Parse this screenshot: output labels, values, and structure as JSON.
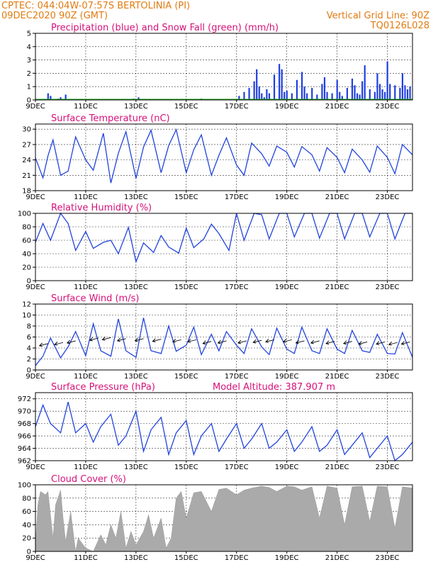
{
  "header": {
    "line1_left": "CPTEC:   044:04W-07:57S  BERTOLINIA (PI)",
    "line2_left": "09DEC2020 90Z (GMT)",
    "line1_right": "Vertical Grid Line: 90Z",
    "line2_right": "TQ0126L028"
  },
  "colors": {
    "header": "#e07b12",
    "title": "#d6117a",
    "line": "#2244dd",
    "precip": "#1f3fe0",
    "snow": "#22aa22",
    "cloud": "#aaaaaa"
  },
  "x_axis": {
    "start_day": 9,
    "end_day": 24,
    "labels": [
      "9DEC",
      "11DEC",
      "13DEC",
      "15DEC",
      "17DEC",
      "19DEC",
      "21DEC",
      "23DEC"
    ],
    "label_days": [
      9,
      11,
      13,
      15,
      17,
      19,
      21,
      23
    ]
  },
  "chart_data": [
    {
      "id": "precipitation",
      "type": "bar",
      "title": "Precipitation (blue) and Snow Fall (green) (mm/h)",
      "ylim": [
        0,
        5
      ],
      "yticks": [
        0,
        1,
        2,
        3,
        4,
        5
      ],
      "series": [
        {
          "name": "Precipitation",
          "x": [
            9.5,
            9.6,
            9.9,
            10.0,
            10.2,
            12.9,
            13.1,
            15.6,
            17.1,
            17.3,
            17.5,
            17.7,
            17.8,
            17.9,
            18.0,
            18.1,
            18.2,
            18.3,
            18.5,
            18.7,
            18.8,
            18.9,
            19.0,
            19.2,
            19.4,
            19.6,
            19.7,
            19.8,
            20.0,
            20.2,
            20.4,
            20.5,
            20.6,
            20.8,
            21.0,
            21.1,
            21.2,
            21.4,
            21.6,
            21.7,
            21.8,
            21.9,
            22.0,
            22.1,
            22.3,
            22.5,
            22.6,
            22.7,
            22.8,
            22.9,
            23.0,
            23.1,
            23.3,
            23.5,
            23.6,
            23.7,
            23.8,
            23.9
          ],
          "values": [
            0.5,
            0.3,
            0.1,
            0.2,
            0.4,
            0.1,
            0.2,
            0.1,
            0.3,
            0.6,
            0.9,
            1.4,
            2.3,
            1.0,
            0.5,
            0.2,
            0.8,
            0.5,
            1.9,
            2.7,
            2.3,
            0.6,
            0.7,
            0.5,
            1.5,
            2.1,
            1.0,
            0.5,
            0.9,
            0.4,
            1.2,
            1.7,
            0.6,
            0.5,
            1.5,
            0.6,
            0.3,
            0.9,
            1.6,
            1.1,
            0.5,
            0.4,
            1.4,
            2.6,
            0.8,
            0.6,
            2.0,
            1.2,
            0.8,
            0.6,
            2.9,
            1.2,
            1.1,
            0.9,
            2.0,
            1.1,
            0.8,
            1.0
          ]
        },
        {
          "name": "Snow Fall",
          "x": [],
          "values": []
        }
      ]
    },
    {
      "id": "temperature",
      "type": "line",
      "title": "Surface Temperature (nC)",
      "ylim": [
        18,
        31
      ],
      "yticks": [
        18,
        21,
        24,
        27,
        30
      ],
      "series": [
        {
          "name": "Temperature",
          "x": [
            9.0,
            9.3,
            9.5,
            9.7,
            10.0,
            10.3,
            10.6,
            11.0,
            11.3,
            11.7,
            12.0,
            12.3,
            12.6,
            13.0,
            13.3,
            13.6,
            14.0,
            14.3,
            14.6,
            15.0,
            15.3,
            15.6,
            16.0,
            16.3,
            16.6,
            17.0,
            17.3,
            17.6,
            18.0,
            18.3,
            18.6,
            19.0,
            19.3,
            19.6,
            20.0,
            20.3,
            20.6,
            21.0,
            21.3,
            21.6,
            22.0,
            22.3,
            22.6,
            23.0,
            23.3,
            23.6,
            24.0
          ],
          "values": [
            24.4,
            20.5,
            24.8,
            27.9,
            21.0,
            21.8,
            28.5,
            24.0,
            22.0,
            29.2,
            19.5,
            25.3,
            29.5,
            20.4,
            26.5,
            29.8,
            21.5,
            26.8,
            29.9,
            21.5,
            26.0,
            28.9,
            21.0,
            24.9,
            28.3,
            23.0,
            21.0,
            27.3,
            25.2,
            22.8,
            26.7,
            25.5,
            22.6,
            26.6,
            25.0,
            21.8,
            26.4,
            24.5,
            21.5,
            26.1,
            24.0,
            21.6,
            26.7,
            24.5,
            21.3,
            27.0,
            25.0
          ]
        }
      ]
    },
    {
      "id": "humidity",
      "type": "line",
      "title": "Relative Humidity (%)",
      "ylim": [
        0,
        100
      ],
      "yticks": [
        0,
        20,
        40,
        60,
        80,
        100
      ],
      "series": [
        {
          "name": "Humidity",
          "x": [
            9.0,
            9.3,
            9.6,
            10.0,
            10.3,
            10.6,
            11.0,
            11.3,
            11.7,
            12.0,
            12.3,
            12.7,
            13.0,
            13.3,
            13.7,
            14.0,
            14.3,
            14.7,
            15.0,
            15.3,
            15.7,
            16.0,
            16.3,
            16.7,
            17.0,
            17.3,
            17.7,
            18.0,
            18.3,
            18.7,
            19.0,
            19.3,
            19.7,
            20.0,
            20.3,
            20.7,
            21.0,
            21.3,
            21.7,
            22.0,
            22.3,
            22.7,
            23.0,
            23.3,
            23.7,
            24.0
          ],
          "values": [
            57,
            85,
            60,
            100,
            85,
            45,
            73,
            48,
            57,
            60,
            40,
            79,
            28,
            56,
            42,
            67,
            50,
            41,
            78,
            49,
            62,
            84,
            70,
            45,
            100,
            60,
            100,
            98,
            62,
            100,
            100,
            65,
            100,
            100,
            63,
            100,
            100,
            62,
            100,
            100,
            65,
            100,
            100,
            62,
            100,
            100
          ]
        }
      ]
    },
    {
      "id": "wind",
      "type": "line",
      "title": "Surface Wind (m/s)",
      "ylim": [
        0,
        12
      ],
      "yticks": [
        0,
        2,
        4,
        6,
        8,
        10,
        12
      ],
      "series": [
        {
          "name": "Wind speed",
          "x": [
            9.0,
            9.3,
            9.6,
            10.0,
            10.3,
            10.6,
            11.0,
            11.3,
            11.6,
            12.0,
            12.3,
            12.6,
            13.0,
            13.3,
            13.6,
            14.0,
            14.3,
            14.6,
            15.0,
            15.3,
            15.6,
            16.0,
            16.3,
            16.6,
            17.0,
            17.3,
            17.6,
            18.0,
            18.3,
            18.6,
            19.0,
            19.3,
            19.6,
            20.0,
            20.3,
            20.6,
            21.0,
            21.3,
            21.6,
            22.0,
            22.3,
            22.6,
            23.0,
            23.3,
            23.6,
            24.0
          ],
          "values": [
            0.8,
            2.5,
            5.8,
            2.2,
            4.2,
            7.0,
            2.6,
            8.4,
            3.5,
            2.5,
            9.3,
            3.5,
            2.3,
            9.5,
            3.5,
            3.0,
            8.0,
            3.4,
            4.5,
            7.8,
            2.8,
            6.5,
            3.5,
            7.0,
            4.5,
            3.0,
            7.5,
            4.2,
            2.8,
            7.6,
            3.8,
            3.0,
            7.8,
            3.5,
            3.0,
            7.5,
            3.8,
            3.0,
            7.2,
            3.5,
            3.2,
            6.5,
            3.0,
            2.9,
            6.8,
            2.3
          ]
        },
        {
          "name": "Wind vectors",
          "x": [
            9.5,
            10.1,
            10.6,
            11.5,
            12.0,
            12.6,
            13.3,
            14.0,
            14.8,
            15.4,
            16.0,
            16.6,
            17.4,
            18.0,
            18.5,
            19.2,
            19.7,
            20.3,
            20.9,
            21.6,
            22.2,
            22.9,
            23.4,
            23.9
          ],
          "values": [
            4.8,
            5.0,
            5.3,
            5.8,
            5.9,
            5.7,
            5.7,
            5.6,
            5.5,
            5.5,
            5.2,
            5.3,
            5.3,
            5.4,
            5.5,
            5.5,
            5.3,
            5.3,
            5.2,
            5.2,
            5.1,
            5.1,
            5.0,
            5.1
          ]
        }
      ]
    },
    {
      "id": "pressure",
      "type": "line",
      "title": "Surface Pressure (hPa)",
      "annotation": "Model Altitude: 387.907 m",
      "ylim": [
        962,
        973
      ],
      "yticks": [
        962,
        964,
        966,
        968,
        970,
        972
      ],
      "series": [
        {
          "name": "Pressure",
          "x": [
            9.0,
            9.3,
            9.6,
            10.0,
            10.3,
            10.6,
            11.0,
            11.3,
            11.6,
            12.0,
            12.3,
            12.6,
            13.0,
            13.3,
            13.6,
            14.0,
            14.3,
            14.6,
            15.0,
            15.3,
            15.6,
            16.0,
            16.3,
            16.6,
            17.0,
            17.3,
            17.6,
            18.0,
            18.3,
            18.6,
            19.0,
            19.3,
            19.6,
            20.0,
            20.3,
            20.6,
            21.0,
            21.3,
            21.6,
            22.0,
            22.3,
            22.6,
            23.0,
            23.3,
            23.6,
            24.0
          ],
          "values": [
            967.5,
            971.0,
            968.0,
            966.5,
            971.5,
            966.5,
            968.0,
            965.0,
            967.5,
            969.5,
            964.5,
            966.0,
            970.0,
            963.5,
            967.0,
            969.0,
            963.0,
            966.5,
            968.5,
            963.0,
            966.0,
            968.0,
            963.5,
            965.5,
            968.0,
            964.0,
            965.5,
            968.0,
            964.0,
            965.0,
            967.0,
            963.5,
            965.0,
            967.5,
            963.5,
            964.5,
            967.0,
            963.0,
            964.5,
            966.5,
            962.5,
            964.0,
            966.0,
            962.0,
            963.0,
            965.0
          ]
        }
      ]
    },
    {
      "id": "cloud",
      "type": "area",
      "title": "Cloud Cover (%)",
      "ylim": [
        0,
        100
      ],
      "yticks": [
        0,
        20,
        40,
        60,
        80,
        100
      ],
      "series": [
        {
          "name": "Cloud cover",
          "x": [
            9.0,
            9.1,
            9.2,
            9.4,
            9.5,
            9.7,
            9.8,
            10.0,
            10.1,
            10.2,
            10.4,
            10.6,
            10.7,
            11.0,
            11.3,
            11.6,
            11.8,
            12.0,
            12.2,
            12.4,
            12.6,
            12.8,
            13.0,
            13.3,
            13.5,
            13.7,
            14.0,
            14.2,
            14.4,
            14.6,
            14.8,
            15.0,
            15.3,
            15.6,
            16.0,
            16.3,
            16.6,
            17.0,
            17.3,
            17.6,
            18.0,
            18.3,
            18.6,
            19.0,
            19.3,
            19.6,
            20.0,
            20.3,
            20.6,
            21.0,
            21.3,
            21.6,
            22.0,
            22.3,
            22.6,
            23.0,
            23.3,
            23.6,
            24.0
          ],
          "values": [
            10,
            70,
            90,
            85,
            90,
            20,
            70,
            92,
            50,
            15,
            60,
            0,
            20,
            5,
            0,
            25,
            10,
            40,
            20,
            60,
            5,
            30,
            10,
            30,
            55,
            20,
            50,
            5,
            20,
            80,
            90,
            50,
            88,
            90,
            60,
            93,
            95,
            85,
            92,
            95,
            98,
            96,
            90,
            98,
            97,
            92,
            97,
            50,
            98,
            95,
            40,
            97,
            98,
            45,
            98,
            97,
            35,
            97,
            95
          ]
        }
      ]
    }
  ]
}
